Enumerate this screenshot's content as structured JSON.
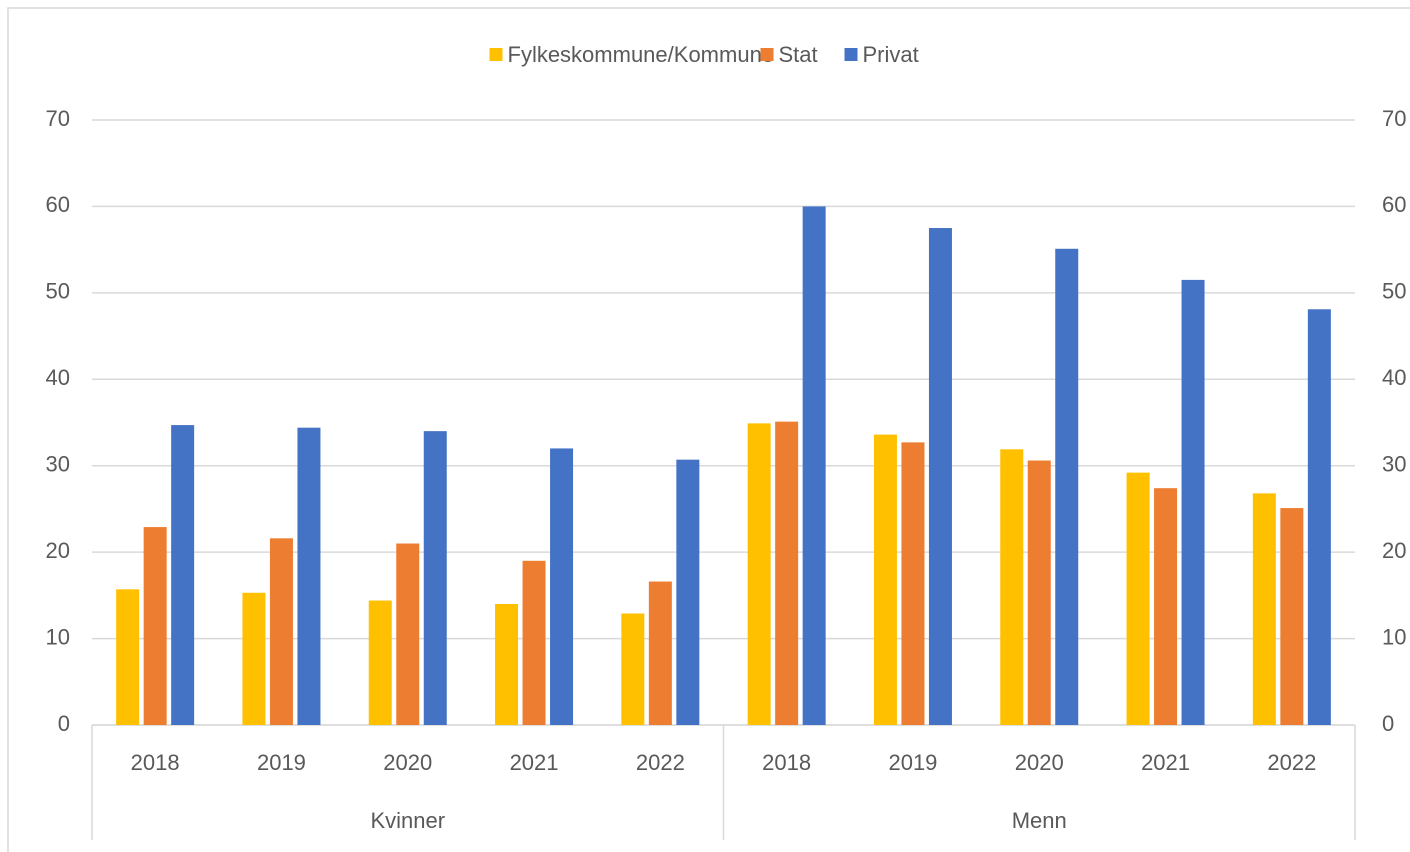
{
  "chart_data": {
    "type": "bar",
    "categories": [
      "2018",
      "2019",
      "2020",
      "2021",
      "2022",
      "2018",
      "2019",
      "2020",
      "2021",
      "2022"
    ],
    "category_groups": [
      "Kvinner",
      "Menn"
    ],
    "series": [
      {
        "name": "Fylkeskommune/Kommune",
        "color": "#ffc000",
        "values": [
          15.7,
          15.3,
          14.4,
          14.0,
          12.9,
          34.9,
          33.6,
          31.9,
          29.2,
          26.8
        ]
      },
      {
        "name": "Stat",
        "color": "#ed7d31",
        "values": [
          22.9,
          21.6,
          21.0,
          19.0,
          16.6,
          35.1,
          32.7,
          30.6,
          27.4,
          25.1
        ]
      },
      {
        "name": "Privat",
        "color": "#4472c4",
        "values": [
          34.7,
          34.4,
          34.0,
          32.0,
          30.7,
          60.0,
          57.5,
          55.1,
          51.5,
          48.1
        ]
      }
    ],
    "ylim": [
      0,
      70
    ],
    "yticks": [
      0,
      10,
      20,
      30,
      40,
      50,
      60,
      70
    ],
    "y2lim": [
      0,
      70
    ],
    "y2ticks": [
      0,
      10,
      20,
      30,
      40,
      50,
      60,
      70
    ],
    "grid": true,
    "legend": "top"
  }
}
